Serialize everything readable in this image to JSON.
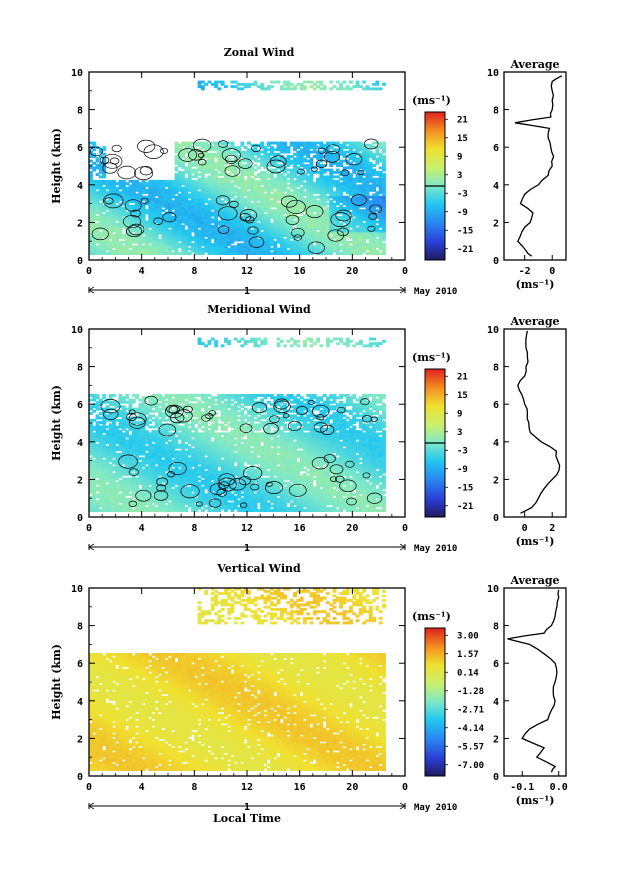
{
  "figure": {
    "xlabel": "Local Time",
    "date_label": "May 2010",
    "day_label": "1",
    "avg_title": "Average",
    "unit_label": "(ms⁻¹)"
  },
  "chart_data": [
    {
      "type": "heatmap",
      "title": "Zonal Wind",
      "xlabel": "Local Time",
      "ylabel": "Height (km)",
      "xlim": [
        0,
        24
      ],
      "ylim": [
        0,
        10
      ],
      "xticks": [
        "0",
        "4",
        "8",
        "12",
        "16",
        "20",
        "0"
      ],
      "yticks": [
        "0",
        "2",
        "4",
        "6",
        "8",
        "10"
      ],
      "colorbar": {
        "unit": "(ms⁻¹)",
        "ticks": [
          "21",
          "15",
          "9",
          "3",
          "-3",
          "-9",
          "-15",
          "-21"
        ],
        "range": [
          -24,
          24
        ],
        "zero_line": true
      },
      "field": {
        "data_extent_x": [
          0,
          22.5
        ],
        "lower_layer_top_km": 4.2,
        "upper_layer_top_km": 6.3,
        "upper_layer_start_h": 6.5,
        "top_strip_km": [
          9.0,
          9.5
        ],
        "typical_range": [
          -9,
          3
        ]
      },
      "average_profile": {
        "title": "Average",
        "xlabel": "(ms⁻¹)",
        "xticks": [
          "-2",
          "0"
        ],
        "xlim": [
          -3.5,
          1
        ],
        "heights": [
          0.2,
          0.5,
          1.0,
          1.5,
          2.0,
          2.5,
          3.0,
          3.5,
          4.0,
          4.5,
          5.0,
          5.5,
          6.0,
          6.5,
          7.0,
          7.3,
          7.6,
          8.0,
          8.5,
          9.0,
          9.5,
          9.8
        ],
        "values": [
          -1.5,
          -1.9,
          -2.5,
          -2.2,
          -1.6,
          -1.4,
          -2.3,
          -2.0,
          -1.0,
          -0.3,
          0.0,
          0.1,
          -0.1,
          -0.3,
          -0.2,
          -2.7,
          -0.1,
          0.0,
          0.0,
          0.0,
          0.0,
          0.7
        ]
      }
    },
    {
      "type": "heatmap",
      "title": "Meridional Wind",
      "xlabel": "Local Time",
      "ylabel": "Height (km)",
      "xlim": [
        0,
        24
      ],
      "ylim": [
        0,
        10
      ],
      "xticks": [
        "0",
        "4",
        "8",
        "12",
        "16",
        "20",
        "0"
      ],
      "yticks": [
        "0",
        "2",
        "4",
        "6",
        "8",
        "10"
      ],
      "colorbar": {
        "unit": "(ms⁻¹)",
        "ticks": [
          "21",
          "15",
          "9",
          "3",
          "-3",
          "-9",
          "-15",
          "-21"
        ],
        "range": [
          -24,
          24
        ],
        "zero_line": true
      },
      "field": {
        "data_extent_x": [
          0,
          22.5
        ],
        "lower_layer_top_km": 4.5,
        "upper_layer_top_km": 6.5,
        "upper_layer_start_h": 0.5,
        "top_strip_km": [
          9.0,
          9.5
        ],
        "typical_range": [
          -6,
          2
        ]
      },
      "average_profile": {
        "title": "Average",
        "xlabel": "(ms⁻¹)",
        "xticks": [
          "0",
          "2"
        ],
        "xlim": [
          -1.5,
          3
        ],
        "heights": [
          0.2,
          0.5,
          1.0,
          1.5,
          2.0,
          2.5,
          3.0,
          3.5,
          4.0,
          4.5,
          5.0,
          5.5,
          6.0,
          6.5,
          7.0,
          7.5,
          8.0,
          8.5,
          9.0,
          9.5,
          9.9
        ],
        "values": [
          -0.3,
          0.5,
          1.0,
          1.4,
          2.0,
          2.5,
          2.4,
          2.3,
          1.2,
          0.4,
          0.3,
          0.2,
          0.0,
          -0.2,
          -0.5,
          0.0,
          0.1,
          0.2,
          0.1,
          0.1,
          0.2
        ]
      }
    },
    {
      "type": "heatmap",
      "title": "Vertical Wind",
      "xlabel": "Local Time",
      "ylabel": "Height (km)",
      "xlim": [
        0,
        24
      ],
      "ylim": [
        0,
        10
      ],
      "xticks": [
        "0",
        "4",
        "8",
        "12",
        "16",
        "20",
        "0"
      ],
      "yticks": [
        "0",
        "2",
        "4",
        "6",
        "8",
        "10"
      ],
      "colorbar": {
        "unit": "(ms⁻¹)",
        "ticks": [
          "3.00",
          "1.57",
          "0.14",
          "-1.28",
          "-2.71",
          "-4.14",
          "-5.57",
          "-7.00"
        ],
        "range": [
          -7,
          3
        ],
        "zero_line": false
      },
      "field": {
        "data_extent_x": [
          0,
          22.5
        ],
        "lower_layer_top_km": 6.5,
        "upper_layer_top_km": 6.5,
        "upper_layer_start_h": 0.5,
        "top_strip_km": [
          8.0,
          10.0
        ],
        "typical_range": [
          0,
          1
        ]
      },
      "average_profile": {
        "title": "Average",
        "xlabel": "(ms⁻¹)",
        "xticks": [
          "-0.1",
          "0.0"
        ],
        "xlim": [
          -0.15,
          0.02
        ],
        "heights": [
          0.2,
          0.5,
          1.0,
          1.5,
          2.0,
          2.5,
          3.0,
          3.5,
          4.0,
          4.5,
          5.0,
          5.5,
          6.0,
          6.5,
          7.0,
          7.3,
          7.6,
          8.0,
          8.5,
          9.0,
          9.5,
          9.9
        ],
        "values": [
          -0.02,
          -0.01,
          -0.06,
          -0.04,
          -0.1,
          -0.08,
          -0.03,
          -0.02,
          -0.01,
          -0.015,
          -0.01,
          -0.005,
          -0.01,
          -0.04,
          -0.08,
          -0.14,
          -0.04,
          -0.02,
          -0.01,
          -0.005,
          0.0,
          0.0
        ]
      }
    }
  ]
}
